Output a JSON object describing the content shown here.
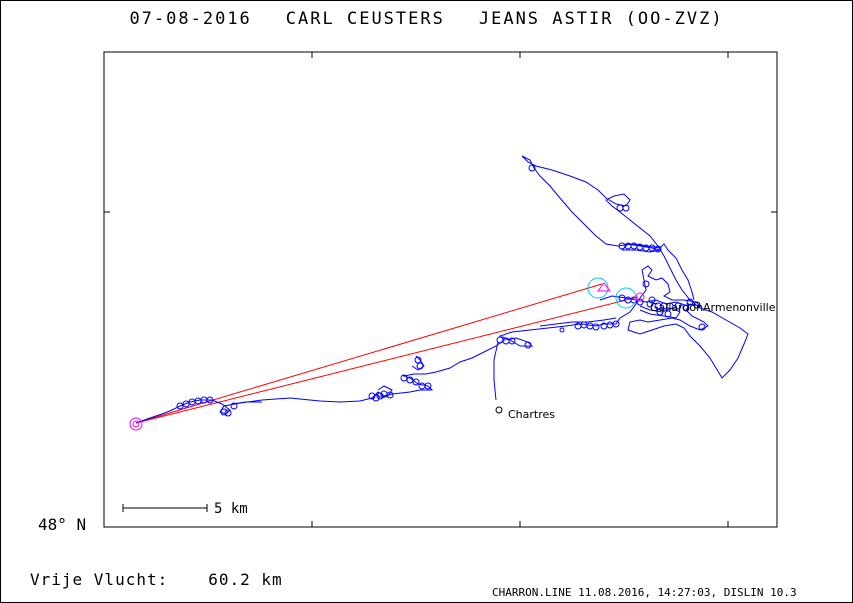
{
  "title": {
    "date": "07-08-2016",
    "pilot": "CARL CEUSTERS",
    "glider": "JEANS ASTIR (OO-ZVZ)"
  },
  "axis": {
    "lat_label": "48° N"
  },
  "scale_bar": {
    "label": "5 km"
  },
  "places": [
    {
      "name": "Chartres"
    },
    {
      "name": "Armenonville"
    },
    {
      "name": "Gallardon"
    }
  ],
  "summary": {
    "label": "Vrije Vlucht:",
    "value": "60.2 km"
  },
  "footer": "CHARRON.LINE 11.08.2016, 14:27:03, DISLIN 10.3",
  "colors": {
    "track": "#0000ff",
    "task_line": "#ff0000",
    "start_marker": "#ff00ff",
    "turnpoint_sector": "#00c8ff",
    "frame": "#000000"
  }
}
